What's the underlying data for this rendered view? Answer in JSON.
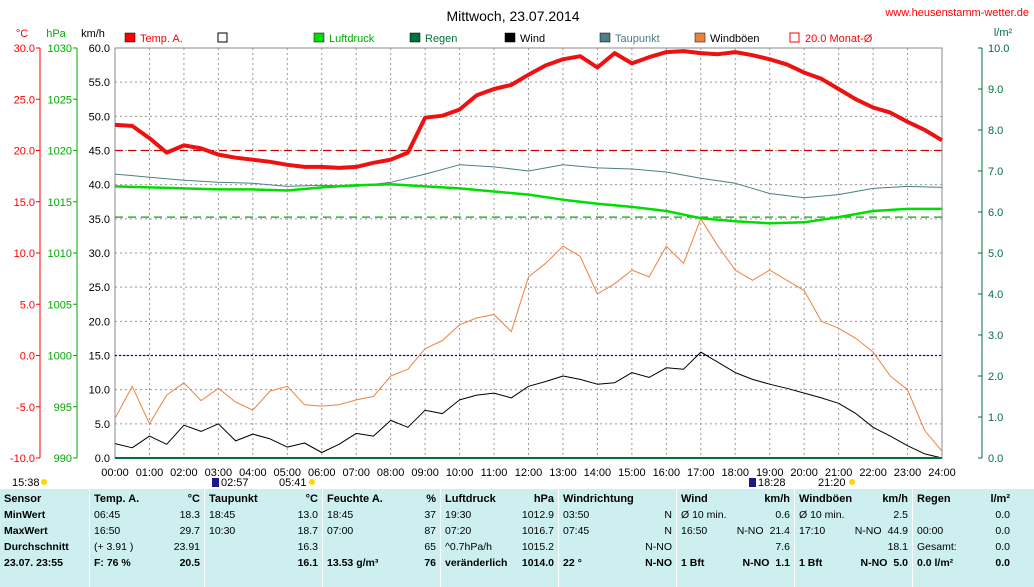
{
  "chart_data": {
    "type": "line",
    "title": "Mittwoch, 23.07.2014",
    "website": "www.heusenstamm-wetter.de",
    "units": {
      "temp": "°C",
      "pressure": "hPa",
      "wind": "km/h",
      "rain": "l/m²"
    },
    "x_ticks": [
      "00:00",
      "01:00",
      "02:00",
      "03:00",
      "04:00",
      "05:00",
      "06:00",
      "07:00",
      "08:00",
      "09:00",
      "10:00",
      "11:00",
      "12:00",
      "13:00",
      "14:00",
      "15:00",
      "16:00",
      "17:00",
      "18:00",
      "19:00",
      "20:00",
      "21:00",
      "22:00",
      "23:00",
      "24:00"
    ],
    "temp_ticks": [
      "30.0",
      "25.0",
      "20.0",
      "15.0",
      "10.0",
      "5.0",
      "0.0",
      "-5.0",
      "-10.0"
    ],
    "temp_tick_colors": [
      "#ff0000",
      "#ff0000",
      "#ff0000",
      "#ff0000",
      "#ff0000",
      "#ff0000",
      "#ff0000",
      "#ff0000",
      "#ff0000"
    ],
    "pressure_ticks": [
      "1030",
      "1025",
      "1020",
      "1015",
      "1010",
      "1005",
      "1000",
      "995",
      "990"
    ],
    "wind_ticks": [
      "60.0",
      "55.0",
      "50.0",
      "45.0",
      "40.0",
      "35.0",
      "30.0",
      "25.0",
      "20.0",
      "15.0",
      "10.0",
      "5.0",
      "0.0"
    ],
    "rain_ticks": [
      "10.0",
      "9.0",
      "8.0",
      "7.0",
      "6.0",
      "5.0",
      "4.0",
      "3.0",
      "2.0",
      "1.0",
      "0.0"
    ],
    "legend": [
      {
        "label": "Temp. A.",
        "color": "#ff0000",
        "style": "filled"
      },
      {
        "label": "",
        "color": "#ffffff",
        "style": "box"
      },
      {
        "label": "Luftdruck",
        "color": "#00dd00",
        "style": "filled"
      },
      {
        "label": "Regen",
        "color": "#00703c",
        "style": "filled"
      },
      {
        "label": "Wind",
        "color": "#000000",
        "style": "filled"
      },
      {
        "label": "Taupunkt",
        "color": "#4a7f86",
        "style": "filled"
      },
      {
        "label": "Windböen",
        "color": "#f08040",
        "style": "filled"
      },
      {
        "label": "20.0 Monat-Ø",
        "color": "#ff0000",
        "style": "box"
      }
    ],
    "sun_markers": [
      "15:38",
      "02:57",
      "05:41",
      "18:28",
      "21:20"
    ],
    "reference_lines": {
      "temp_month_avg": 20.0,
      "temp_zero": 0.0,
      "pressure_avg": 1013.5
    },
    "series": [
      {
        "name": "Temp. A.",
        "color": "#ee1111",
        "unit": "°C",
        "x": [
          0,
          0.5,
          1,
          1.5,
          2,
          2.5,
          3,
          3.5,
          4,
          4.5,
          5,
          5.5,
          6,
          6.5,
          7,
          7.5,
          8,
          8.5,
          9,
          9.5,
          10,
          10.5,
          11,
          11.5,
          12,
          12.5,
          13,
          13.5,
          14,
          14.5,
          15,
          15.5,
          16,
          16.5,
          17,
          17.5,
          18,
          18.5,
          19,
          19.5,
          20,
          20.5,
          21,
          21.5,
          22,
          22.5,
          23,
          23.5,
          24
        ],
        "values": [
          22.5,
          22.4,
          21.2,
          19.8,
          20.5,
          20.2,
          19.6,
          19.3,
          19.1,
          18.9,
          18.6,
          18.4,
          18.4,
          18.3,
          18.4,
          18.8,
          19.1,
          19.8,
          23.2,
          23.4,
          24.0,
          25.4,
          26.0,
          26.4,
          27.4,
          28.3,
          28.9,
          29.2,
          28.1,
          29.5,
          28.5,
          29.1,
          29.6,
          29.7,
          29.5,
          29.4,
          29.6,
          29.3,
          28.9,
          28.4,
          27.6,
          27.0,
          26.0,
          25.0,
          24.2,
          23.7,
          22.8,
          22.0,
          21.0
        ]
      },
      {
        "name": "Taupunkt",
        "color": "#4a7f86",
        "unit": "°C",
        "x": [
          0,
          1,
          2,
          3,
          4,
          5,
          6,
          7,
          8,
          9,
          10,
          11,
          12,
          13,
          14,
          15,
          16,
          17,
          18,
          19,
          20,
          21,
          22,
          23,
          24
        ],
        "values": [
          17.7,
          17.4,
          17.1,
          16.9,
          16.8,
          16.5,
          16.6,
          16.5,
          16.9,
          17.7,
          18.6,
          18.4,
          18.0,
          18.6,
          18.3,
          18.2,
          17.9,
          17.3,
          16.8,
          15.8,
          15.4,
          15.7,
          16.3,
          16.5,
          16.4
        ]
      },
      {
        "name": "Luftdruck",
        "color": "#00dd00",
        "unit": "hPa",
        "x": [
          0,
          1,
          2,
          3,
          4,
          5,
          6,
          7,
          8,
          9,
          10,
          11,
          12,
          13,
          14,
          15,
          16,
          17,
          18,
          19,
          20,
          21,
          22,
          23,
          24
        ],
        "values": [
          1016.5,
          1016.4,
          1016.3,
          1016.2,
          1016.2,
          1016.1,
          1016.4,
          1016.6,
          1016.7,
          1016.5,
          1016.3,
          1016.0,
          1015.7,
          1015.2,
          1014.8,
          1014.5,
          1014.1,
          1013.4,
          1013.1,
          1012.9,
          1013.0,
          1013.5,
          1014.1,
          1014.3,
          1014.3
        ]
      },
      {
        "name": "Wind",
        "color": "#000000",
        "unit": "km/h",
        "x": [
          0,
          0.5,
          1,
          1.5,
          2,
          2.5,
          3,
          3.5,
          4,
          4.5,
          5,
          5.5,
          6,
          6.5,
          7,
          7.5,
          8,
          8.5,
          9,
          9.5,
          10,
          10.5,
          11,
          11.5,
          12,
          12.5,
          13,
          13.5,
          14,
          14.5,
          15,
          15.5,
          16,
          16.5,
          17,
          17.5,
          18,
          18.5,
          19,
          19.5,
          20,
          20.5,
          21,
          21.5,
          22,
          22.5,
          23,
          23.5,
          24
        ],
        "values": [
          2.1,
          1.5,
          3.2,
          2.0,
          4.8,
          3.9,
          5.0,
          2.5,
          3.5,
          2.8,
          1.6,
          2.2,
          0.8,
          2.0,
          3.6,
          3.2,
          5.5,
          4.5,
          7.0,
          6.5,
          8.5,
          9.2,
          9.5,
          8.8,
          10.5,
          11.2,
          12.0,
          11.5,
          10.8,
          11.0,
          12.5,
          11.8,
          13.2,
          13.0,
          15.5,
          14.0,
          12.5,
          11.5,
          10.8,
          10.2,
          9.5,
          8.8,
          8.0,
          6.5,
          4.5,
          3.2,
          1.8,
          0.6,
          0.0
        ]
      },
      {
        "name": "Windböen",
        "color": "#f08040",
        "unit": "km/h",
        "x": [
          0,
          0.5,
          1,
          1.5,
          2,
          2.5,
          3,
          3.5,
          4,
          4.5,
          5,
          5.5,
          6,
          6.5,
          7,
          7.5,
          8,
          8.5,
          9,
          9.5,
          10,
          10.5,
          11,
          11.5,
          12,
          12.5,
          13,
          13.5,
          14,
          14.5,
          15,
          15.5,
          16,
          16.5,
          17,
          17.5,
          18,
          18.5,
          19,
          19.5,
          20,
          20.5,
          21,
          21.5,
          22,
          22.5,
          23,
          23.5,
          24
        ],
        "values": [
          5.8,
          10.5,
          5.0,
          9.2,
          11.0,
          8.4,
          10.2,
          8.2,
          7.0,
          9.8,
          10.5,
          7.8,
          7.6,
          7.8,
          8.5,
          9.0,
          12.0,
          13.0,
          16.0,
          17.2,
          19.5,
          20.5,
          21.0,
          18.5,
          26.5,
          28.5,
          31.0,
          29.5,
          24.0,
          25.5,
          27.5,
          26.5,
          31.0,
          28.5,
          35.0,
          31.0,
          27.5,
          26.0,
          27.5,
          26.0,
          24.5,
          20.0,
          19.0,
          17.5,
          15.5,
          12.0,
          10.0,
          4.0,
          1.0
        ]
      },
      {
        "name": "Regen",
        "color": "#00703c",
        "unit": "l/m²",
        "x": [
          0,
          24
        ],
        "values": [
          0.0,
          0.0
        ]
      }
    ]
  },
  "table": {
    "sensor": {
      "head": "Sensor",
      "rows": [
        "MinWert",
        "MaxWert",
        "Durchschnitt",
        "23.07. 23:55"
      ]
    },
    "temp": {
      "head": "Temp. A.",
      "unit": "°C",
      "rows": [
        [
          "06:45",
          "18.3"
        ],
        [
          "16:50",
          "29.7"
        ],
        [
          "(+ 3.91 )",
          "23.91"
        ],
        [
          "F: 76 %",
          "20.5"
        ]
      ]
    },
    "dew": {
      "head": "Taupunkt",
      "unit": "°C",
      "rows": [
        [
          "18:45",
          "13.0"
        ],
        [
          "10:30",
          "18.7"
        ],
        [
          "",
          "16.3"
        ],
        [
          "",
          "16.1"
        ]
      ]
    },
    "hum": {
      "head": "Feuchte A.",
      "unit": "%",
      "rows": [
        [
          "18:45",
          "37"
        ],
        [
          "07:00",
          "87"
        ],
        [
          "",
          "65"
        ],
        [
          "13.53 g/m³",
          "76"
        ]
      ]
    },
    "press": {
      "head": "Luftdruck",
      "unit": "hPa",
      "rows": [
        [
          "19:30",
          "1012.9"
        ],
        [
          "07:20",
          "1016.7"
        ],
        [
          "^0.7hPa/h",
          "1015.2"
        ],
        [
          "veränderlich",
          "1014.0"
        ]
      ]
    },
    "dir": {
      "head": "Windrichtung",
      "unit": "",
      "rows": [
        [
          "03:50",
          "N"
        ],
        [
          "07:45",
          "N"
        ],
        [
          "",
          "N-NO"
        ],
        [
          "22 °",
          "N-NO"
        ]
      ]
    },
    "wind": {
      "head": "Wind",
      "unit": "km/h",
      "rows": [
        [
          "Ø 10 min.",
          "",
          "0.6"
        ],
        [
          "16:50",
          "N-NO",
          "21.4"
        ],
        [
          "",
          "",
          "7.6"
        ],
        [
          "1 Bft",
          "N-NO",
          "1.1"
        ]
      ]
    },
    "gust": {
      "head": "Windböen",
      "unit": "km/h",
      "rows": [
        [
          "Ø 10 min.",
          "",
          "2.5"
        ],
        [
          "17:10",
          "N-NO",
          "44.9"
        ],
        [
          "",
          "",
          "18.1"
        ],
        [
          "1 Bft",
          "N-NO",
          "5.0"
        ]
      ]
    },
    "rain": {
      "head": "Regen",
      "unit": "l/m²",
      "rows": [
        [
          "",
          "0.0"
        ],
        [
          "00:00",
          "0.0"
        ],
        [
          "Gesamt:",
          "0.0"
        ],
        [
          "0.0 l/m²",
          "0.0"
        ]
      ]
    }
  }
}
